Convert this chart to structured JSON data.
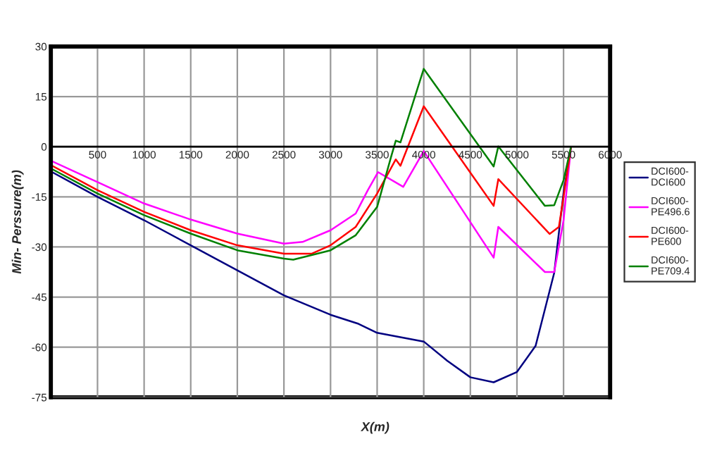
{
  "chart_data": {
    "type": "line",
    "xlabel": "X(m)",
    "ylabel": "Min- Perssure(m)",
    "xlim": [
      0,
      6000
    ],
    "xticks": [
      500,
      1000,
      1500,
      2000,
      2500,
      3000,
      3500,
      4000,
      4500,
      5000,
      5500,
      6000
    ],
    "ylim": [
      -75,
      30
    ],
    "yticks": [
      -75,
      -60,
      -45,
      -30,
      -15,
      0,
      15,
      30
    ],
    "grid": true,
    "legend": "right",
    "marker": "none",
    "line_style": "solid",
    "series": [
      {
        "name": "DCI600-\nDCI600",
        "color": "#000080",
        "x": [
          0,
          500,
          1000,
          1500,
          2000,
          2500,
          3000,
          3300,
          3500,
          4000,
          4250,
          4500,
          4750,
          5000,
          5200,
          5400,
          5500,
          5580
        ],
        "values": [
          -7.4,
          -15,
          -22,
          -29.5,
          -37,
          -44.5,
          -50.3,
          -53,
          -55.7,
          -58.3,
          -64,
          -69,
          -70.5,
          -67.4,
          -59.6,
          -37.7,
          -13.7,
          0
        ]
      },
      {
        "name": "DCI600-\nPE496.6",
        "color": "#ff00ff",
        "x": [
          0,
          500,
          1000,
          1500,
          2000,
          2500,
          2700,
          3000,
          3270,
          3400,
          3510,
          3780,
          4000,
          4750,
          4800,
          5300,
          5400,
          5500,
          5580
        ],
        "values": [
          -4.2,
          -10.6,
          -17,
          -21.8,
          -26,
          -29,
          -28.5,
          -25,
          -20,
          -13,
          -7.6,
          -12,
          -1.3,
          -33.2,
          -24,
          -37.5,
          -37.5,
          -22,
          0
        ]
      },
      {
        "name": "DCI600-\nPE600",
        "color": "#ff0000",
        "x": [
          0,
          500,
          1000,
          1500,
          2000,
          2500,
          2800,
          3000,
          3270,
          3500,
          3700,
          3750,
          4000,
          4750,
          4800,
          5350,
          5450,
          5500,
          5580
        ],
        "values": [
          -5.5,
          -13,
          -19.5,
          -25,
          -29.5,
          -32,
          -32,
          -29.5,
          -24,
          -14,
          -3.8,
          -5.7,
          12.1,
          -17.7,
          -9.7,
          -26.1,
          -24,
          -15,
          0
        ]
      },
      {
        "name": "DCI600-\nPE709.4",
        "color": "#008000",
        "x": [
          0,
          500,
          1000,
          1500,
          2000,
          2500,
          2600,
          3000,
          3270,
          3500,
          3650,
          3700,
          3750,
          4000,
          4750,
          4800,
          5300,
          5400,
          5500,
          5580
        ],
        "values": [
          -6.5,
          -14,
          -20.5,
          -26,
          -31,
          -33.5,
          -33.8,
          -31,
          -26.5,
          -18,
          -3,
          1.8,
          1.3,
          23.3,
          -5.9,
          0.1,
          -17.7,
          -17.5,
          -10,
          0
        ]
      }
    ]
  }
}
